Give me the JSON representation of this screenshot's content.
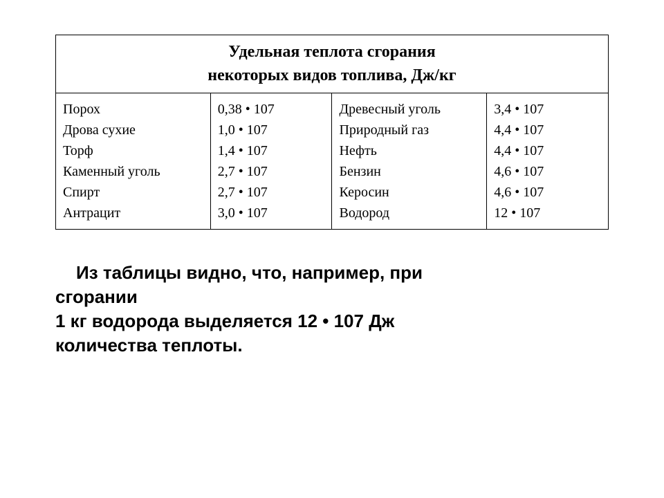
{
  "table": {
    "header_line1": "Удельная теплота сгорания",
    "header_line2": "некоторых видов топлива, Дж/кг",
    "columns_left": {
      "names": [
        "Порох",
        "Дрова сухие",
        "Торф",
        "Каменный уголь",
        "Спирт",
        "Антрацит"
      ],
      "values": [
        "0,38 • 107",
        "1,0 • 107",
        "1,4 • 107",
        "2,7 • 107",
        "2,7 • 107",
        "3,0 • 107"
      ]
    },
    "columns_right": {
      "names": [
        "Древесный уголь",
        "Природный газ",
        "Нефть",
        "Бензин",
        "Керосин",
        "Водород"
      ],
      "values": [
        "3,4 • 107",
        "4,4 • 107",
        "4,4 • 107",
        "4,6 • 107",
        "4,6 • 107",
        "12 • 107"
      ]
    }
  },
  "caption": {
    "line1": "Из таблицы видно, что, например, при",
    "line2": "сгорании",
    "line3": "1 кг водорода выделяется 12 • 107  Дж",
    "line4": "количества теплоты."
  },
  "style": {
    "background_color": "#ffffff",
    "text_color": "#000000",
    "border_color": "#000000",
    "header_fontsize": 24,
    "data_fontsize": 20,
    "caption_fontsize": 26,
    "header_font_family": "Times New Roman",
    "caption_font_family": "Arial"
  }
}
